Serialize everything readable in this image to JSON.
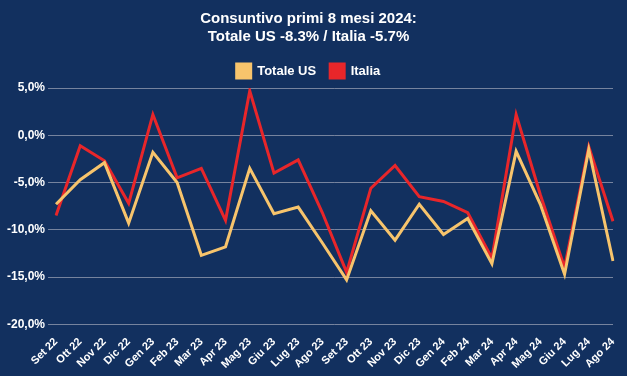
{
  "chart_data": {
    "type": "line",
    "title": [
      "Consuntivo primi 8 mesi 2024:",
      "Totale US -8.3% / Italia -5.7%"
    ],
    "categories": [
      "Set 22",
      "Ott 22",
      "Nov 22",
      "Dic 22",
      "Gen 23",
      "Feb 23",
      "Mar 23",
      "Apr 23",
      "Mag 23",
      "Giu 23",
      "Lug 23",
      "Ago 23",
      "Set 23",
      "Ott 23",
      "Nov 23",
      "Dic 23",
      "Gen 24",
      "Feb 24",
      "Mar 24",
      "Apr 24",
      "Mag 24",
      "Giu 24",
      "Lug 24",
      "Ago 24"
    ],
    "series": [
      {
        "name": "Totale US",
        "color": "#f7c46c",
        "values": [
          -7.3,
          -4.7,
          -2.9,
          -9.3,
          -1.8,
          -5.0,
          -12.7,
          -11.8,
          -3.5,
          -8.3,
          -7.6,
          -11.4,
          -15.3,
          -8.0,
          -11.1,
          -7.3,
          -10.5,
          -8.8,
          -13.6,
          -1.7,
          -7.3,
          -14.7,
          -1.5,
          -13.3
        ]
      },
      {
        "name": "Italia",
        "color": "#e8262a",
        "values": [
          -8.5,
          -1.1,
          -2.7,
          -7.2,
          2.2,
          -4.5,
          -3.5,
          -9.0,
          4.7,
          -4.0,
          -2.6,
          -8.2,
          -14.5,
          -5.6,
          -3.2,
          -6.5,
          -7.0,
          -8.2,
          -13.0,
          2.2,
          -6.3,
          -14.0,
          -1.2,
          -9.1
        ]
      }
    ],
    "ylim": [
      -20,
      5
    ],
    "yticks": [
      {
        "value": -20,
        "label": "-20,0%"
      },
      {
        "value": -15,
        "label": "-15,0%"
      },
      {
        "value": -10,
        "label": "-10,0%"
      },
      {
        "value": -5,
        "label": "-5,0%"
      },
      {
        "value": 0,
        "label": "0,0%"
      },
      {
        "value": 5,
        "label": "5,0%"
      }
    ],
    "grid": true,
    "legend": "top"
  }
}
